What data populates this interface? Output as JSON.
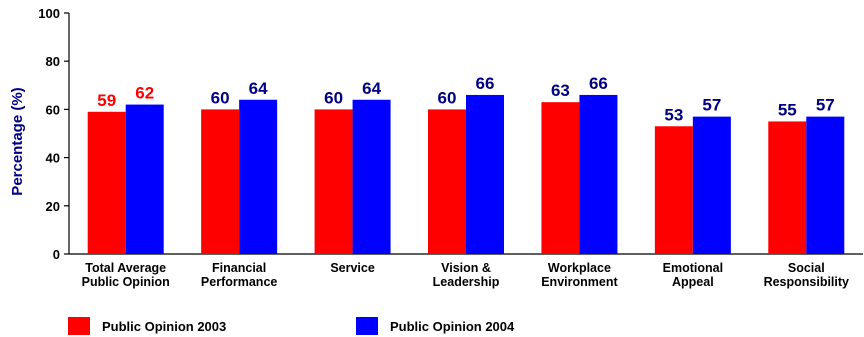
{
  "chart_data": {
    "type": "bar",
    "ylabel": "Percentage (%)",
    "ylim": [
      0,
      100
    ],
    "yticks": [
      0,
      20,
      40,
      60,
      80,
      100
    ],
    "categories": [
      [
        "Total Average",
        "Public Opinion"
      ],
      [
        "Financial",
        "Performance"
      ],
      [
        "Service"
      ],
      [
        "Vision &",
        "Leadership"
      ],
      [
        "Workplace",
        "Environment"
      ],
      [
        "Emotional",
        "Appeal"
      ],
      [
        "Social",
        "Responsibility"
      ]
    ],
    "series": [
      {
        "name": "Public Opinion 2003",
        "color": "#ff0000",
        "values": [
          59,
          60,
          60,
          60,
          63,
          53,
          55
        ]
      },
      {
        "name": "Public Opinion 2004",
        "color": "#0000ff",
        "values": [
          62,
          64,
          64,
          66,
          66,
          57,
          57
        ]
      }
    ],
    "value_label_colors": [
      [
        "#ff0000",
        "#ff0000"
      ],
      [
        "#000080",
        "#000080"
      ],
      [
        "#000080",
        "#000080"
      ],
      [
        "#000080",
        "#000080"
      ],
      [
        "#000080",
        "#000080"
      ],
      [
        "#000080",
        "#000080"
      ],
      [
        "#000080",
        "#000080"
      ]
    ],
    "grid": false,
    "legend_position": "bottom"
  }
}
